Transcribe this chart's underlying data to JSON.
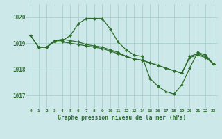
{
  "bg_color": "#cce8e8",
  "grid_color": "#aad0d0",
  "line_color": "#2d6e2d",
  "marker_color": "#2d6e2d",
  "xlabel": "Graphe pression niveau de la mer (hPa)",
  "ylim": [
    1016.5,
    1020.5
  ],
  "xlim": [
    -0.5,
    23.5
  ],
  "yticks": [
    1017,
    1018,
    1019,
    1020
  ],
  "xticks": [
    0,
    1,
    2,
    3,
    4,
    5,
    6,
    7,
    8,
    9,
    10,
    11,
    12,
    13,
    14,
    15,
    16,
    17,
    18,
    19,
    20,
    21,
    22,
    23
  ],
  "series": [
    [
      1019.3,
      1018.85,
      1018.85,
      1019.1,
      1019.1,
      1019.3,
      1019.75,
      1019.95,
      1019.95,
      1019.95,
      1019.55,
      1019.05,
      1018.75,
      1018.55,
      1018.5,
      1017.65,
      1017.35,
      1017.15,
      1017.05,
      1017.4,
      1018.05,
      1018.65,
      1018.55,
      1018.2
    ],
    [
      1019.3,
      1018.85,
      1018.85,
      1019.1,
      1019.15,
      1019.1,
      1019.05,
      1018.95,
      1018.9,
      1018.85,
      1018.75,
      1018.65,
      1018.5,
      1018.4,
      1018.35,
      1018.25,
      1018.15,
      1018.05,
      1017.95,
      1017.85,
      1018.5,
      1018.6,
      1018.5,
      1018.2
    ],
    [
      1019.3,
      1018.85,
      1018.85,
      1019.05,
      1019.05,
      1019.0,
      1018.95,
      1018.9,
      1018.85,
      1018.8,
      1018.7,
      1018.6,
      1018.5,
      1018.4,
      1018.35,
      1018.25,
      1018.15,
      1018.05,
      1017.95,
      1017.85,
      1018.45,
      1018.55,
      1018.45,
      1018.2
    ]
  ]
}
